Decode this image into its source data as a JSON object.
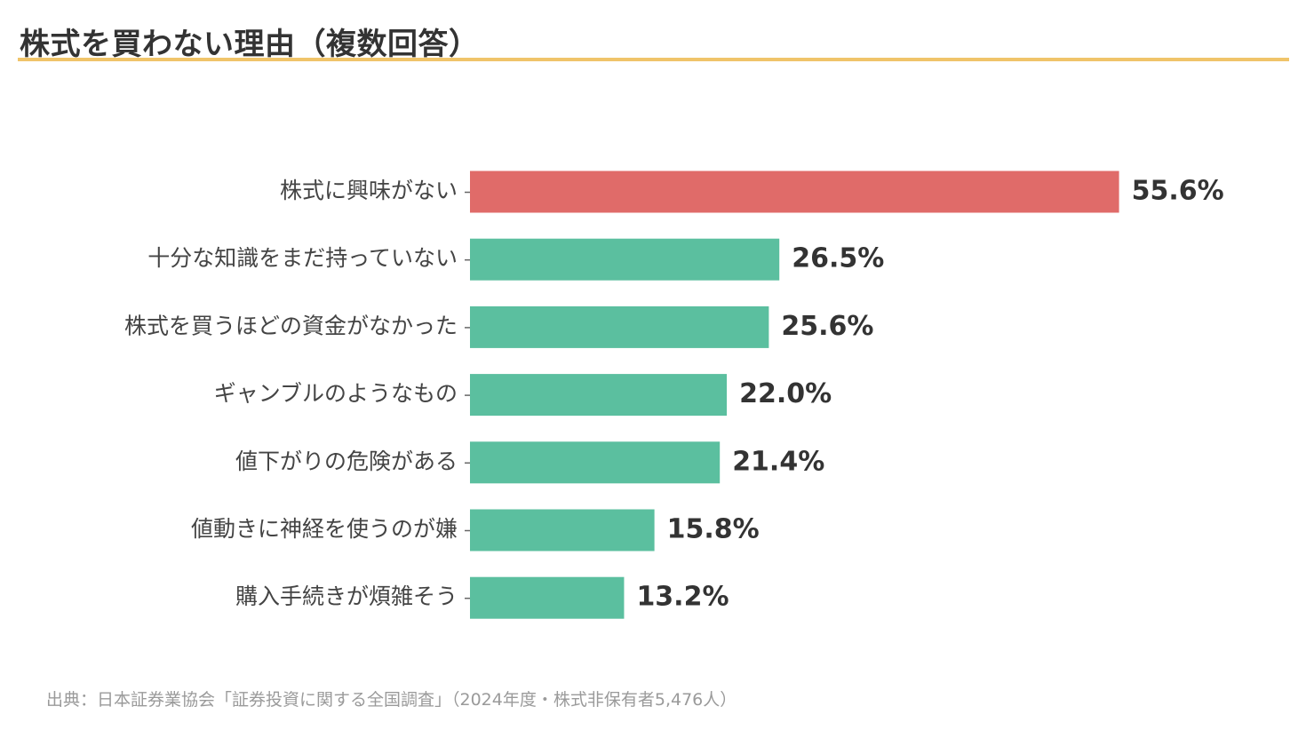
{
  "title": "株式を買わない理由（複数回答）",
  "source": "出典：日本証券業協会「証券投資に関する全国調査」（2024年度・株式非保有者5,476人）",
  "colors": {
    "highlight_bar": "#e06b69",
    "bar": "#5bbf9f",
    "title_rule": "#f0c46a",
    "tick": "#666666"
  },
  "chart_data": {
    "type": "bar",
    "orientation": "horizontal",
    "categories": [
      "株式に興味がない",
      "十分な知識をまだ持っていない",
      "株式を買うほどの資金がなかった",
      "ギャンブルのようなもの",
      "値下がりの危険がある",
      "値動きに神経を使うのが嫌",
      "購入手続きが煩雑そう"
    ],
    "values": [
      55.6,
      26.5,
      25.6,
      22.0,
      21.4,
      15.8,
      13.2
    ],
    "value_labels": [
      "55.6%",
      "26.5%",
      "25.6%",
      "22.0%",
      "21.4%",
      "15.8%",
      "13.2%"
    ],
    "unit": "%",
    "highlight_index": 0,
    "xlim": [
      0,
      60
    ],
    "grid": false,
    "legend": "none"
  }
}
